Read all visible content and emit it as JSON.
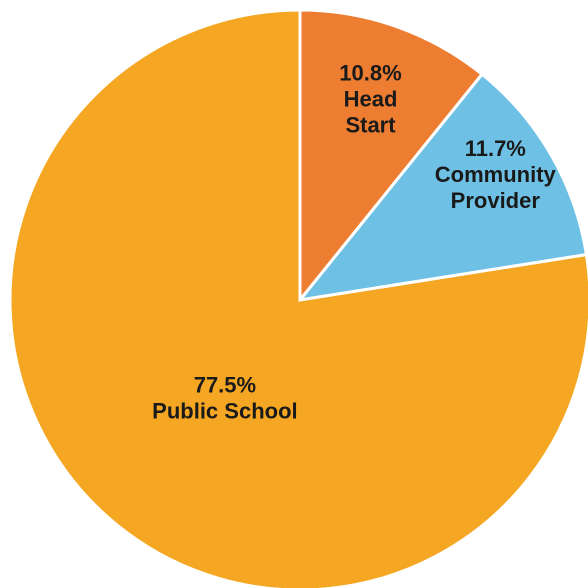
{
  "chart_data": {
    "type": "pie",
    "title": "",
    "start_angle_deg": 0,
    "direction": "clockwise",
    "slices": [
      {
        "label": "Head Start",
        "label_lines": [
          "10.8%",
          "Head",
          "Start"
        ],
        "percent": 10.8,
        "color": "#ED7D31"
      },
      {
        "label": "Community Provider",
        "label_lines": [
          "11.7%",
          "Community",
          "Provider"
        ],
        "percent": 11.7,
        "color": "#6EC1E4"
      },
      {
        "label": "Public School",
        "label_lines": [
          "77.5%",
          "Public School"
        ],
        "percent": 77.5,
        "color": "#F5A623"
      }
    ]
  }
}
